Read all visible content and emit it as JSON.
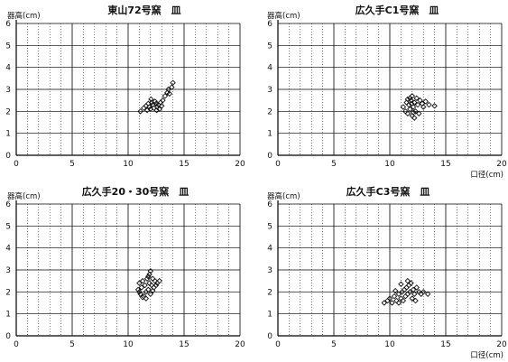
{
  "chart_data": [
    {
      "type": "scatter",
      "title": "東山72号窯　皿",
      "ylabel": "器高(cm)",
      "xlabel": "",
      "xlim": [
        0,
        20
      ],
      "ylim": [
        0,
        6
      ],
      "xticks": [
        "0",
        "5",
        "10",
        "15",
        "20"
      ],
      "yticks": [
        "0",
        "1",
        "2",
        "3",
        "4",
        "5",
        "6"
      ],
      "grid": true,
      "series": [
        {
          "points": [
            [
              11.1,
              2.0
            ],
            [
              11.4,
              2.15
            ],
            [
              11.6,
              2.25
            ],
            [
              11.8,
              2.35
            ],
            [
              11.9,
              2.2
            ],
            [
              12.0,
              2.1
            ],
            [
              12.1,
              2.4
            ],
            [
              12.2,
              2.3
            ],
            [
              12.3,
              2.15
            ],
            [
              12.4,
              2.45
            ],
            [
              12.5,
              2.35
            ],
            [
              12.6,
              2.2
            ],
            [
              12.7,
              2.3
            ],
            [
              12.8,
              2.1
            ],
            [
              12.9,
              2.4
            ],
            [
              13.0,
              2.25
            ],
            [
              13.1,
              2.5
            ],
            [
              13.3,
              2.7
            ],
            [
              13.5,
              2.85
            ],
            [
              13.6,
              3.0
            ],
            [
              13.7,
              2.8
            ],
            [
              13.9,
              3.1
            ],
            [
              14.0,
              3.3
            ],
            [
              12.05,
              2.55
            ],
            [
              11.7,
              2.05
            ],
            [
              12.55,
              2.05
            ]
          ]
        }
      ]
    },
    {
      "type": "scatter",
      "title": "広久手C1号窯　皿",
      "ylabel": "器高(cm)",
      "xlabel": "口径(cm)",
      "xlim": [
        0,
        20
      ],
      "ylim": [
        0,
        6
      ],
      "xticks": [
        "0",
        "5",
        "10",
        "15",
        "20"
      ],
      "yticks": [
        "0",
        "1",
        "2",
        "3",
        "4",
        "5",
        "6"
      ],
      "grid": true,
      "series": [
        {
          "points": [
            [
              11.2,
              2.2
            ],
            [
              11.4,
              2.0
            ],
            [
              11.5,
              2.4
            ],
            [
              11.6,
              1.9
            ],
            [
              11.7,
              2.3
            ],
            [
              11.8,
              2.1
            ],
            [
              11.9,
              2.5
            ],
            [
              12.0,
              1.8
            ],
            [
              12.1,
              2.2
            ],
            [
              12.2,
              2.4
            ],
            [
              12.3,
              2.0
            ],
            [
              12.4,
              2.6
            ],
            [
              12.5,
              2.3
            ],
            [
              12.6,
              1.9
            ],
            [
              12.7,
              2.5
            ],
            [
              11.8,
              2.6
            ],
            [
              12.0,
              2.7
            ],
            [
              12.2,
              1.7
            ],
            [
              11.6,
              2.55
            ],
            [
              12.9,
              2.35
            ],
            [
              13.0,
              2.2
            ],
            [
              13.2,
              2.45
            ],
            [
              13.5,
              2.3
            ],
            [
              14.0,
              2.25
            ],
            [
              12.1,
              1.95
            ],
            [
              11.95,
              2.35
            ]
          ]
        }
      ]
    },
    {
      "type": "scatter",
      "title": "広久手20・30号窯　皿",
      "ylabel": "器高(cm)",
      "xlabel": "",
      "xlim": [
        0,
        20
      ],
      "ylim": [
        0,
        6
      ],
      "xticks": [
        "0",
        "5",
        "10",
        "15",
        "20"
      ],
      "yticks": [
        "0",
        "1",
        "2",
        "3",
        "4",
        "5",
        "6"
      ],
      "grid": true,
      "series": [
        {
          "points": [
            [
              10.9,
              2.1
            ],
            [
              11.0,
              2.4
            ],
            [
              11.1,
              1.9
            ],
            [
              11.2,
              2.2
            ],
            [
              11.3,
              2.5
            ],
            [
              11.4,
              1.8
            ],
            [
              11.5,
              2.3
            ],
            [
              11.6,
              2.0
            ],
            [
              11.7,
              2.6
            ],
            [
              11.8,
              2.1
            ],
            [
              11.9,
              2.4
            ],
            [
              12.0,
              1.9
            ],
            [
              12.1,
              2.3
            ],
            [
              12.2,
              2.6
            ],
            [
              12.3,
              2.2
            ],
            [
              12.4,
              2.5
            ],
            [
              12.6,
              2.4
            ],
            [
              12.8,
              2.5
            ],
            [
              11.9,
              2.8
            ],
            [
              12.0,
              2.95
            ],
            [
              11.3,
              1.75
            ],
            [
              11.6,
              1.7
            ],
            [
              12.5,
              2.3
            ],
            [
              11.0,
              2.0
            ],
            [
              11.8,
              2.7
            ],
            [
              12.2,
              2.05
            ]
          ]
        }
      ]
    },
    {
      "type": "scatter",
      "title": "広久手C3号窯　皿",
      "ylabel": "器高(cm)",
      "xlabel": "口径(cm)",
      "xlim": [
        0,
        20
      ],
      "ylim": [
        0,
        6
      ],
      "xticks": [
        "0",
        "5",
        "10",
        "15",
        "20"
      ],
      "yticks": [
        "0",
        "1",
        "2",
        "3",
        "4",
        "5",
        "6"
      ],
      "grid": true,
      "series": [
        {
          "points": [
            [
              9.5,
              1.5
            ],
            [
              9.8,
              1.6
            ],
            [
              10.0,
              1.7
            ],
            [
              10.2,
              1.5
            ],
            [
              10.4,
              1.8
            ],
            [
              10.6,
              1.6
            ],
            [
              10.8,
              1.9
            ],
            [
              11.0,
              1.7
            ],
            [
              11.1,
              2.0
            ],
            [
              11.2,
              1.6
            ],
            [
              11.3,
              2.1
            ],
            [
              11.4,
              1.8
            ],
            [
              11.5,
              2.2
            ],
            [
              11.6,
              1.9
            ],
            [
              11.7,
              2.3
            ],
            [
              11.8,
              2.0
            ],
            [
              11.9,
              2.4
            ],
            [
              12.0,
              1.7
            ],
            [
              12.1,
              2.1
            ],
            [
              12.2,
              1.9
            ],
            [
              12.4,
              2.2
            ],
            [
              12.6,
              2.0
            ],
            [
              12.8,
              1.9
            ],
            [
              13.0,
              2.0
            ],
            [
              13.4,
              1.9
            ],
            [
              11.0,
              2.35
            ],
            [
              10.5,
              2.05
            ],
            [
              11.6,
              2.5
            ],
            [
              12.3,
              1.6
            ],
            [
              10.8,
              1.5
            ]
          ]
        }
      ]
    }
  ]
}
